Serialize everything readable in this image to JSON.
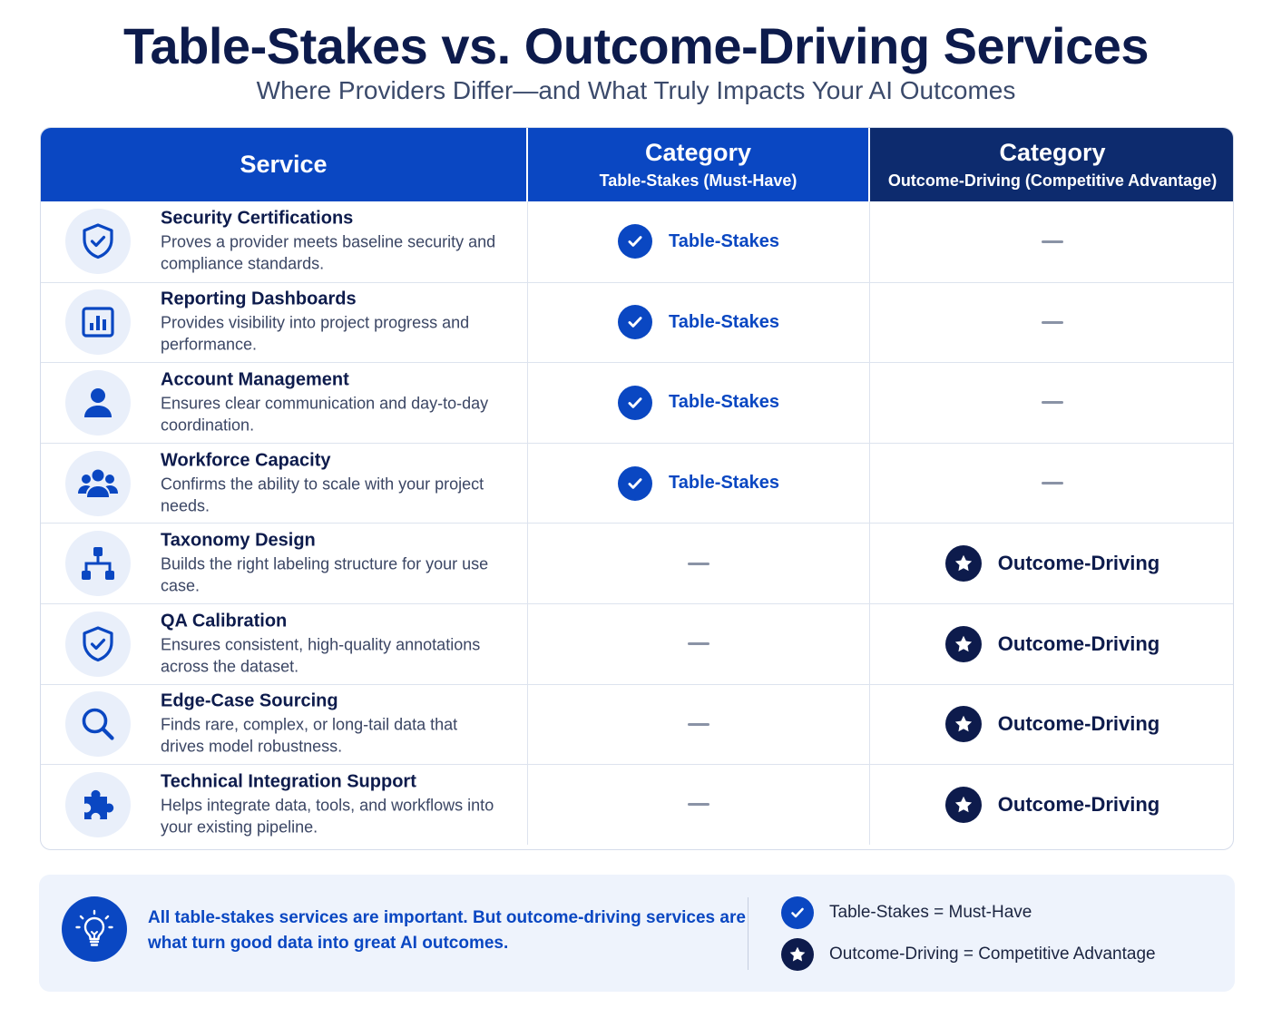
{
  "title": "Table-Stakes vs. Outcome-Driving Services",
  "subtitle": "Where Providers Differ—and What Truly Impacts Your AI Outcomes",
  "table": {
    "headers": {
      "service": "Service",
      "table_stakes_main": "Category",
      "table_stakes_sub": "Table-Stakes (Must-Have)",
      "outcome_main": "Category",
      "outcome_sub": "Outcome-Driving (Competitive Advantage)"
    },
    "rows": [
      {
        "icon": "shield-check-icon",
        "name": "Security Certifications",
        "desc": "Proves a provider meets baseline security and compliance standards.",
        "category": "Table-Stakes"
      },
      {
        "icon": "bar-chart-icon",
        "name": "Reporting Dashboards",
        "desc": "Provides visibility into project progress and performance.",
        "category": "Table-Stakes"
      },
      {
        "icon": "user-icon",
        "name": "Account Management",
        "desc": "Ensures clear communication and day-to-day coordination.",
        "category": "Table-Stakes"
      },
      {
        "icon": "group-icon",
        "name": "Workforce Capacity",
        "desc": "Confirms the ability to scale with your project needs.",
        "category": "Table-Stakes"
      },
      {
        "icon": "hierarchy-icon",
        "name": "Taxonomy Design",
        "desc": "Builds the right labeling structure for your use case.",
        "category": "Outcome-Driving"
      },
      {
        "icon": "shield-check-icon",
        "name": "QA Calibration",
        "desc": "Ensures consistent, high-quality annotations across the dataset.",
        "category": "Outcome-Driving"
      },
      {
        "icon": "search-icon",
        "name": "Edge-Case Sourcing",
        "desc": "Finds rare, complex, or long-tail data that drives model robustness.",
        "category": "Outcome-Driving"
      },
      {
        "icon": "puzzle-icon",
        "name": "Technical Integration Support",
        "desc": "Helps integrate data, tools, and workflows into your existing pipeline.",
        "category": "Outcome-Driving"
      }
    ]
  },
  "footer": {
    "icon": "lightbulb-icon",
    "message": "All table-stakes services are important. But outcome-driving services are what turn good data into great AI outcomes.",
    "legend": [
      {
        "icon": "check-icon",
        "text": "Table-Stakes = Must-Have"
      },
      {
        "icon": "star-icon",
        "text": "Outcome-Driving = Competitive Advantage"
      }
    ]
  },
  "colors": {
    "primary_blue": "#0a47c2",
    "navy": "#0d1b4c",
    "header_navy": "#0d2b6e",
    "footer_bg": "#eef3fc"
  }
}
